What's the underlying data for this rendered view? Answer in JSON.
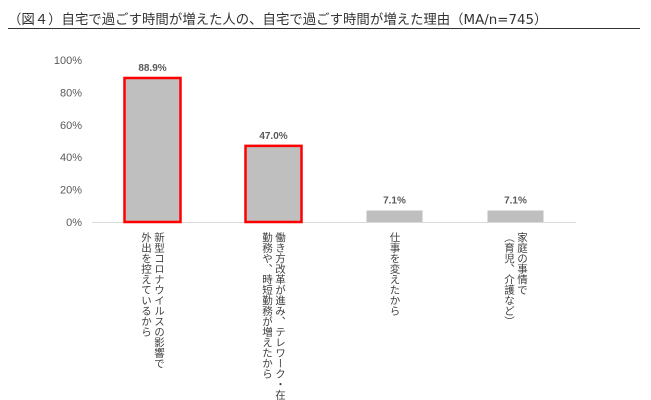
{
  "title": "（図４）自宅で過ごす時間が増えた人の、自宅で過ごす時間が増えた理由（MA/n=745）",
  "chart_data": {
    "type": "bar",
    "categories": [
      [
        "新型コロナウイルスの影響で",
        "外出を控えているから"
      ],
      [
        "働き方改革が進み、テレワーク・在宅",
        "勤務や、時短勤務が増えたから"
      ],
      [
        "仕事を変えたから"
      ],
      [
        "家庭の事情で",
        "（育児、介護など）"
      ]
    ],
    "values": [
      88.9,
      47.0,
      7.1,
      7.1
    ],
    "value_labels": [
      "88.9%",
      "47.0%",
      "7.1%",
      "7.1%"
    ],
    "y_ticks": [
      "0%",
      "20%",
      "40%",
      "60%",
      "80%",
      "100%"
    ],
    "ylim": [
      0,
      100
    ],
    "highlighted": [
      true,
      true,
      false,
      false
    ],
    "grid": false,
    "legend": "none",
    "colors": {
      "bar": "#bfbfbf",
      "highlight_border": "#ff0000",
      "axis": "#d9d9d9",
      "text": "#595959"
    }
  }
}
